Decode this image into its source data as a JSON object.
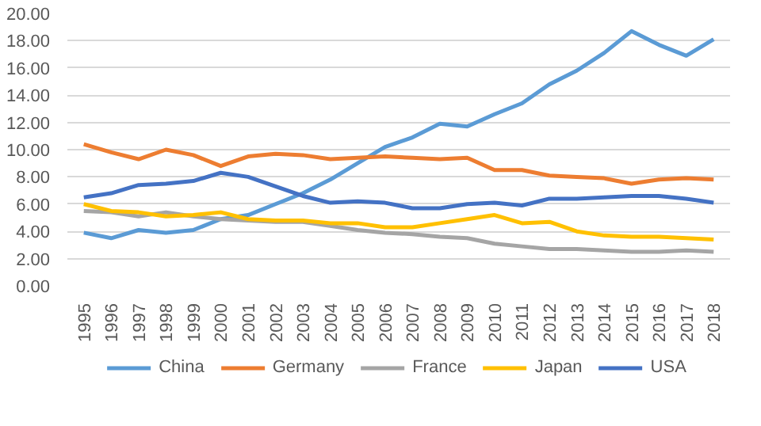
{
  "chart_data": {
    "type": "line",
    "categories": [
      "1995",
      "1996",
      "1997",
      "1998",
      "1999",
      "2000",
      "2001",
      "2002",
      "2003",
      "2004",
      "2005",
      "2006",
      "2007",
      "2008",
      "2009",
      "2010",
      "2011",
      "2012",
      "2013",
      "2014",
      "2015",
      "2016",
      "2017",
      "2018"
    ],
    "series": [
      {
        "name": "China",
        "color": "#5b9bd5",
        "values": [
          3.9,
          3.5,
          4.1,
          3.9,
          4.1,
          4.9,
          5.2,
          6.0,
          6.8,
          7.8,
          9.0,
          10.2,
          10.9,
          11.9,
          11.7,
          12.6,
          13.4,
          14.8,
          15.8,
          17.1,
          18.7,
          17.7,
          16.9,
          18.1
        ]
      },
      {
        "name": "Germany",
        "color": "#ed7d31",
        "values": [
          10.4,
          9.8,
          9.3,
          10.0,
          9.6,
          8.8,
          9.5,
          9.7,
          9.6,
          9.3,
          9.4,
          9.5,
          9.4,
          9.3,
          9.4,
          8.5,
          8.5,
          8.1,
          8.0,
          7.9,
          7.5,
          7.8,
          7.9,
          7.8
        ]
      },
      {
        "name": "France",
        "color": "#a5a5a5",
        "values": [
          5.5,
          5.4,
          5.1,
          5.4,
          5.1,
          4.9,
          4.8,
          4.7,
          4.7,
          4.4,
          4.1,
          3.9,
          3.8,
          3.6,
          3.5,
          3.1,
          2.9,
          2.7,
          2.7,
          2.6,
          2.5,
          2.5,
          2.6,
          2.5
        ]
      },
      {
        "name": "Japan",
        "color": "#ffc000",
        "values": [
          6.0,
          5.5,
          5.4,
          5.1,
          5.2,
          5.4,
          4.9,
          4.8,
          4.8,
          4.6,
          4.6,
          4.3,
          4.3,
          4.6,
          4.9,
          5.2,
          4.6,
          4.7,
          4.0,
          3.7,
          3.6,
          3.6,
          3.5,
          3.4
        ]
      },
      {
        "name": "USA",
        "color": "#4472c4",
        "values": [
          6.5,
          6.8,
          7.4,
          7.5,
          7.7,
          8.3,
          8.0,
          7.3,
          6.6,
          6.1,
          6.2,
          6.1,
          5.7,
          5.7,
          6.0,
          6.1,
          5.9,
          6.4,
          6.4,
          6.5,
          6.6,
          6.6,
          6.4,
          6.1
        ]
      }
    ],
    "ylim": [
      0,
      20
    ],
    "yticks": [
      {
        "value": 0,
        "label": "0.00"
      },
      {
        "value": 2,
        "label": "2.00"
      },
      {
        "value": 4,
        "label": "4.00"
      },
      {
        "value": 6,
        "label": "6.00"
      },
      {
        "value": 8,
        "label": "8.00"
      },
      {
        "value": 10,
        "label": "10.00"
      },
      {
        "value": 12,
        "label": "12.00"
      },
      {
        "value": 14,
        "label": "14.00"
      },
      {
        "value": 16,
        "label": "16.00"
      },
      {
        "value": 18,
        "label": "18.00"
      },
      {
        "value": 20,
        "label": "20.00"
      }
    ],
    "grid": "y",
    "legend": "bottom",
    "line_style": "solid"
  }
}
